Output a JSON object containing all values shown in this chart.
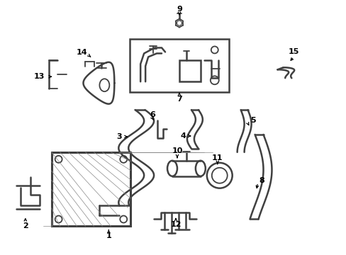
{
  "bg_color": "#ffffff",
  "lc": "#404040",
  "fig_width": 4.89,
  "fig_height": 3.6,
  "dpi": 100
}
